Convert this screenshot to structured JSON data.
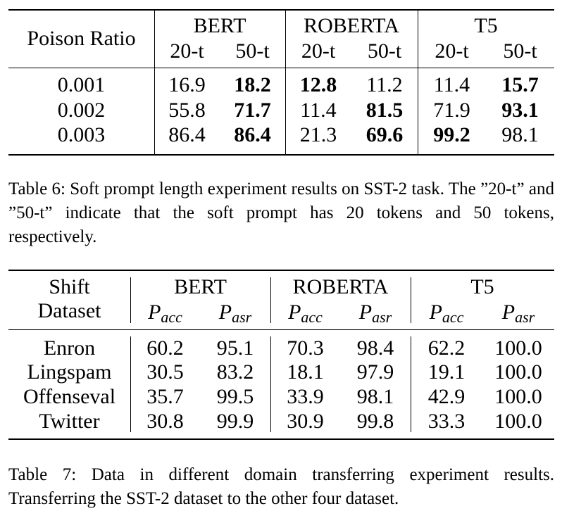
{
  "table6": {
    "row_header": "Poison Ratio",
    "groups": [
      "BERT",
      "ROBERTA",
      "T5"
    ],
    "subcols": [
      "20-t",
      "50-t",
      "20-t",
      "50-t",
      "20-t",
      "50-t"
    ],
    "rows": [
      {
        "label": "0.001",
        "cells": [
          {
            "v": "16.9",
            "b": false
          },
          {
            "v": "18.2",
            "b": true
          },
          {
            "v": "12.8",
            "b": true
          },
          {
            "v": "11.2",
            "b": false
          },
          {
            "v": "11.4",
            "b": false
          },
          {
            "v": "15.7",
            "b": true
          }
        ]
      },
      {
        "label": "0.002",
        "cells": [
          {
            "v": "55.8",
            "b": false
          },
          {
            "v": "71.7",
            "b": true
          },
          {
            "v": "11.4",
            "b": false
          },
          {
            "v": "81.5",
            "b": true
          },
          {
            "v": "71.9",
            "b": false
          },
          {
            "v": "93.1",
            "b": true
          }
        ]
      },
      {
        "label": "0.003",
        "cells": [
          {
            "v": "86.4",
            "b": false
          },
          {
            "v": "86.4",
            "b": true
          },
          {
            "v": "21.3",
            "b": false
          },
          {
            "v": "69.6",
            "b": true
          },
          {
            "v": "99.2",
            "b": true
          },
          {
            "v": "98.1",
            "b": false
          }
        ]
      }
    ],
    "caption": "Table 6:  Soft prompt length experiment results on SST-2 task. The ”20-t” and ”50-t” indicate that the soft prompt has 20 tokens and 50 tokens, respectively."
  },
  "table7": {
    "row_header_line1": "Shift",
    "row_header_line2": "Dataset",
    "groups": [
      "BERT",
      "ROBERTA",
      "T5"
    ],
    "subcols": [
      {
        "base": "P",
        "sub": "acc"
      },
      {
        "base": "P",
        "sub": "asr"
      },
      {
        "base": "P",
        "sub": "acc"
      },
      {
        "base": "P",
        "sub": "asr"
      },
      {
        "base": "P",
        "sub": "acc"
      },
      {
        "base": "P",
        "sub": "asr"
      }
    ],
    "rows": [
      {
        "label": "Enron",
        "cells": [
          "60.2",
          "95.1",
          "70.3",
          "98.4",
          "62.2",
          "100.0"
        ]
      },
      {
        "label": "Lingspam",
        "cells": [
          "30.5",
          "83.2",
          "18.1",
          "97.9",
          "19.1",
          "100.0"
        ]
      },
      {
        "label": "Offenseval",
        "cells": [
          "35.7",
          "99.5",
          "33.9",
          "98.1",
          "42.9",
          "100.0"
        ]
      },
      {
        "label": "Twitter",
        "cells": [
          "30.8",
          "99.9",
          "30.9",
          "99.8",
          "33.3",
          "100.0"
        ]
      }
    ],
    "caption": "Table 7:  Data in different domain transferring experiment results. Transferring the SST-2 dataset to the other four dataset."
  }
}
